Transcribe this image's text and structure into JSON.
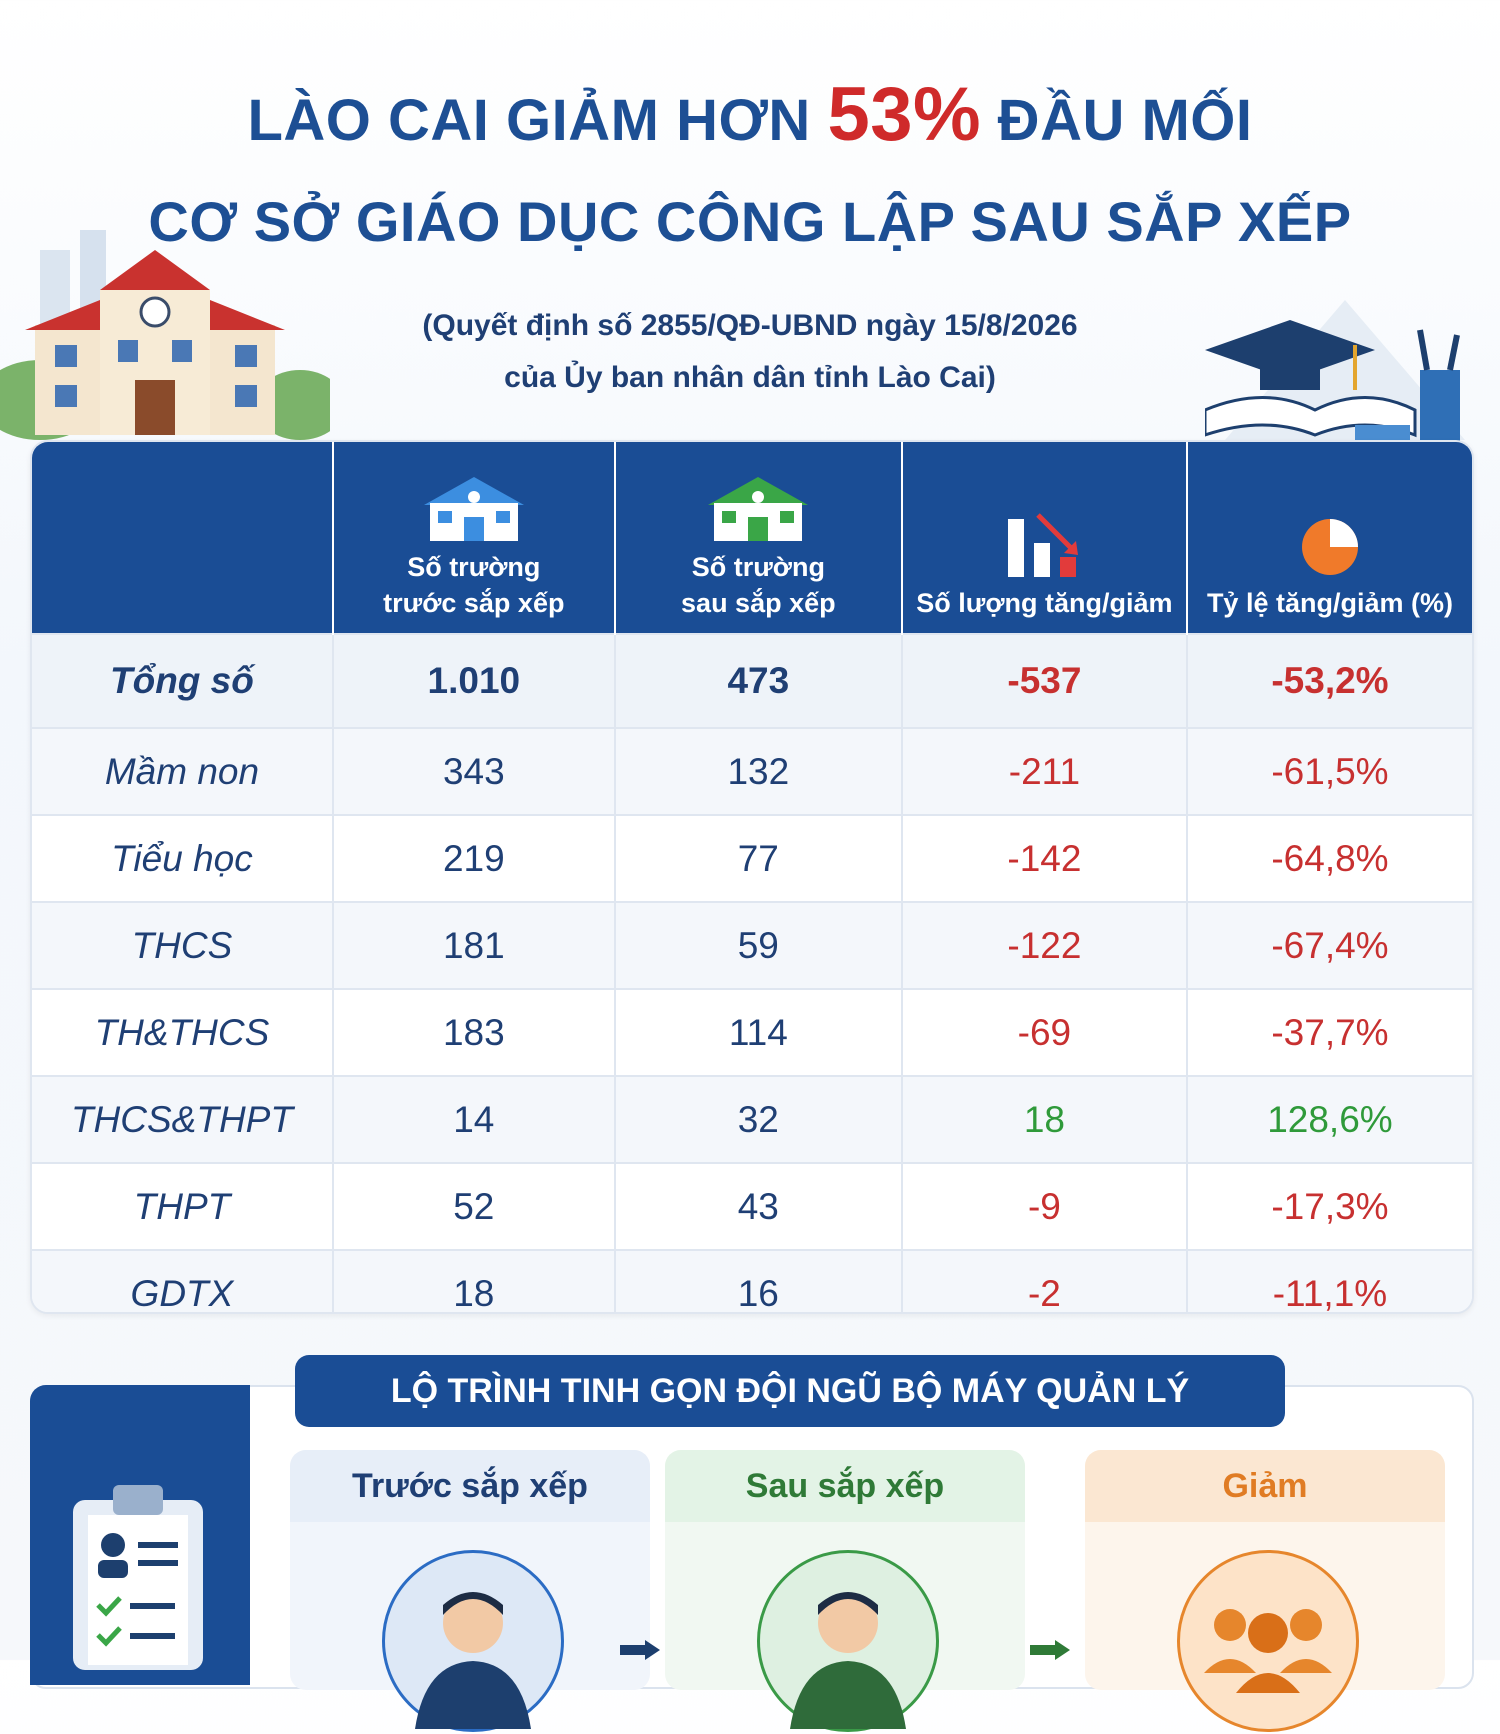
{
  "title": {
    "line1_before": "LÀO CAI GIẢM HƠN ",
    "line1_highlight": "53%",
    "line1_after": " ĐẦU MỐI",
    "line2": "CƠ SỞ GIÁO DỤC CÔNG LẬP SAU SẮP XẾP"
  },
  "subtitle": {
    "line1": "(Quyết định số 2855/QĐ-UBND ngày 15/8/2026",
    "line2": "của Ủy ban nhân dân tỉnh Lào Cai)"
  },
  "table": {
    "headers": [
      {
        "line1": "",
        "line2": "",
        "icon": "school-icon"
      },
      {
        "line1": "Số trường",
        "line2": "trước sắp xếp",
        "icon": "school-blue-icon"
      },
      {
        "line1": "Số trường",
        "line2": "sau sắp xếp",
        "icon": "school-green-icon"
      },
      {
        "line1": "",
        "line2": "Số lượng tăng/giảm",
        "icon": "bar-chart-down-icon"
      },
      {
        "line1": "",
        "line2": "Tỷ lệ tăng/giảm (%)",
        "icon": "pie-chart-icon"
      }
    ],
    "rows": [
      {
        "label": "Tổng số",
        "before": "1.010",
        "after": "473",
        "change": "-537",
        "rate": "-53,2%",
        "trend": "neg"
      },
      {
        "label": "Mầm non",
        "before": "343",
        "after": "132",
        "change": "-211",
        "rate": "-61,5%",
        "trend": "neg"
      },
      {
        "label": "Tiểu học",
        "before": "219",
        "after": "77",
        "change": "-142",
        "rate": "-64,8%",
        "trend": "neg"
      },
      {
        "label": "THCS",
        "before": "181",
        "after": "59",
        "change": "-122",
        "rate": "-67,4%",
        "trend": "neg"
      },
      {
        "label": "TH&THCS",
        "before": "183",
        "after": "114",
        "change": "-69",
        "rate": "-37,7%",
        "trend": "neg"
      },
      {
        "label": "THCS&THPT",
        "before": "14",
        "after": "32",
        "change": "18",
        "rate": "128,6%",
        "trend": "pos"
      },
      {
        "label": "THPT",
        "before": "52",
        "after": "43",
        "change": "-9",
        "rate": "-17,3%",
        "trend": "neg"
      },
      {
        "label": "GDTX",
        "before": "18",
        "after": "16",
        "change": "-2",
        "rate": "-11,1%",
        "trend": "neg"
      }
    ]
  },
  "section": {
    "banner": "LỘ TRÌNH TINH GỌN ĐỘI NGŨ BỘ MÁY QUẢN LÝ",
    "cards": [
      {
        "title": "Trước sắp xếp",
        "icon": "manager-icon"
      },
      {
        "title": "Sau sắp xếp",
        "icon": "manager-icon"
      },
      {
        "title": "Giảm",
        "icon": "group-icon"
      }
    ],
    "side_icon": "clipboard-icon"
  },
  "colors": {
    "primary": "#1a4d95",
    "negative": "#c73030",
    "positive": "#2f9a3a",
    "highlight": "#cf2a2a",
    "orange": "#e07c24"
  }
}
